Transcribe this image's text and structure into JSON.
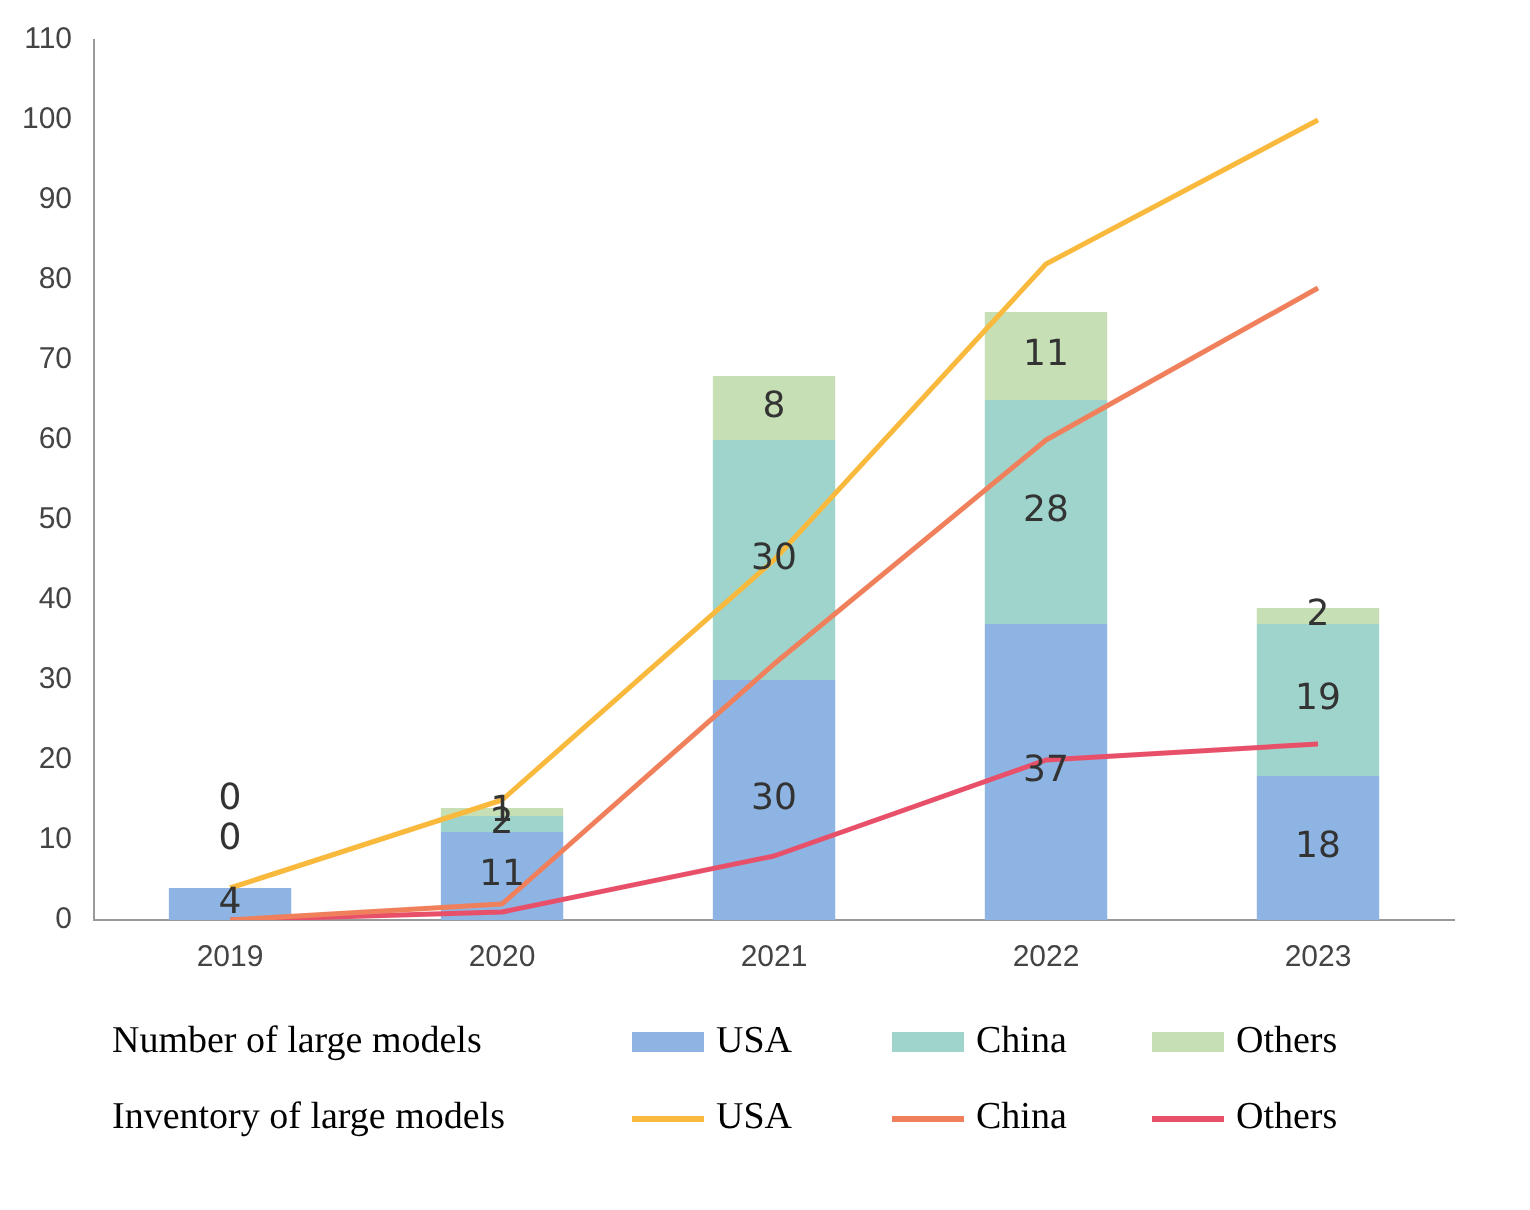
{
  "chart_data": {
    "type": "bar",
    "stacked": true,
    "categories": [
      "2019",
      "2020",
      "2021",
      "2022",
      "2023"
    ],
    "ylim": [
      0,
      110
    ],
    "yticks": [
      0,
      10,
      20,
      30,
      40,
      50,
      60,
      70,
      80,
      90,
      100,
      110
    ],
    "grid": false,
    "legend": "bottom",
    "annotations": [
      "Number of large models",
      "Inventory of large models"
    ],
    "series": [
      {
        "name": "USA",
        "color": "#8db4e2",
        "values": [
          4,
          11,
          30,
          37,
          18
        ],
        "data_labels": true
      },
      {
        "name": "China",
        "color": "#9fd4cc",
        "values": [
          0,
          2,
          30,
          28,
          19
        ],
        "data_labels": true
      },
      {
        "name": "Others",
        "color": "#c6dfb4",
        "values": [
          0,
          1,
          8,
          11,
          2
        ],
        "data_labels": true
      },
      {
        "name": "USA",
        "type": "line",
        "color": "#f9b93c",
        "values": [
          4,
          15,
          45,
          82,
          100
        ]
      },
      {
        "name": "China",
        "type": "line",
        "color": "#f0805c",
        "values": [
          0,
          2,
          32,
          60,
          79
        ]
      },
      {
        "name": "Others",
        "type": "line",
        "color": "#e8506a",
        "values": [
          0,
          1,
          8,
          20,
          22
        ]
      }
    ]
  }
}
